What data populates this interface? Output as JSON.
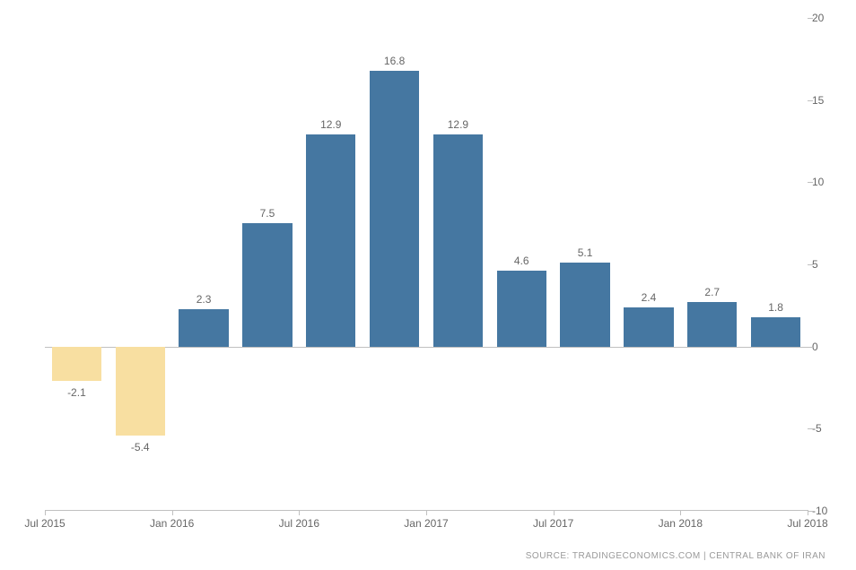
{
  "chart": {
    "type": "bar",
    "background_color": "#ffffff",
    "positive_color": "#4577a1",
    "negative_color": "#f8dfa1",
    "label_color": "#666666",
    "axis_color": "#c0c0c0",
    "label_fontsize": 12,
    "ylim": [
      -10,
      20
    ],
    "ytick_step": 5,
    "yticks": [
      -10,
      -5,
      0,
      5,
      10,
      15,
      20
    ],
    "bar_width_ratio": 0.78,
    "values": [
      -2.1,
      -5.4,
      2.3,
      7.5,
      12.9,
      16.8,
      12.9,
      4.6,
      5.1,
      2.4,
      2.7,
      1.8
    ],
    "xticks": [
      {
        "index": 0,
        "label": "Jul 2015"
      },
      {
        "index": 2,
        "label": "Jan 2016"
      },
      {
        "index": 4,
        "label": "Jul 2016"
      },
      {
        "index": 6,
        "label": "Jan 2017"
      },
      {
        "index": 8,
        "label": "Jul 2017"
      },
      {
        "index": 10,
        "label": "Jan 2018"
      },
      {
        "index": 12,
        "label": "Jul 2018"
      }
    ]
  },
  "source": "SOURCE: TRADINGECONOMICS.COM | CENTRAL BANK OF IRAN"
}
